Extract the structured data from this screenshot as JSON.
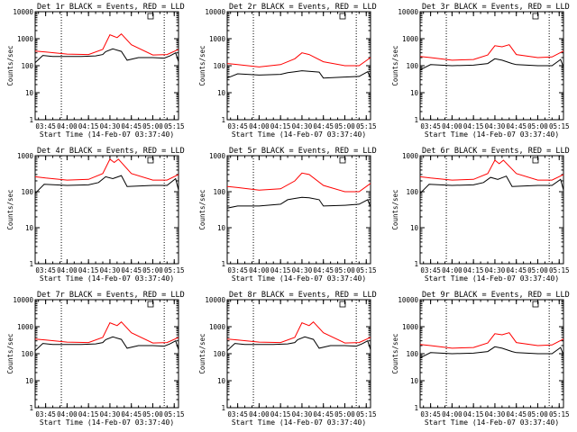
{
  "colors": {
    "events": "#000000",
    "lld": "#ff0000",
    "axis": "#000000"
  },
  "chart_data": [
    {
      "type": "line",
      "title": "Det 1r BLACK = Events, RED = LLD",
      "xlabel": "Start Time (14-Feb-07 03:37:40)",
      "ylabel": "Counts/sec",
      "log_y": true,
      "ylim": [
        1,
        10000
      ],
      "ytick_labels": [
        "1",
        "10",
        "100",
        "1000",
        "10000"
      ],
      "xlim": [
        "03:37:40",
        "05:18:00"
      ],
      "xtick_labels": [
        "03:45",
        "04:00",
        "04:15",
        "04:30",
        "04:45",
        "05:00",
        "05:15"
      ],
      "vlines": [
        "03:56",
        "05:08"
      ],
      "legend": "top-right",
      "series": [
        {
          "name": "BLACK = Events",
          "color": "#000000",
          "x": [
            "03:37:40",
            "03:43",
            "03:50",
            "04:00",
            "04:10",
            "04:20",
            "04:25",
            "04:27",
            "04:32",
            "04:38",
            "04:42",
            "04:50",
            "05:00",
            "05:08",
            "05:12",
            "05:16",
            "05:18"
          ],
          "y": [
            130,
            240,
            220,
            220,
            220,
            230,
            260,
            330,
            420,
            340,
            160,
            200,
            200,
            190,
            230,
            300,
            140
          ]
        },
        {
          "name": "RED = LLD",
          "color": "#ff0000",
          "x": [
            "03:37:40",
            "03:45",
            "04:00",
            "04:15",
            "04:25",
            "04:30",
            "04:35",
            "04:38",
            "04:45",
            "05:00",
            "05:10",
            "05:18"
          ],
          "y": [
            350,
            320,
            270,
            260,
            400,
            1400,
            1100,
            1500,
            600,
            250,
            260,
            400
          ]
        }
      ]
    },
    {
      "type": "line",
      "title": "Det 2r BLACK = Events, RED = LLD",
      "xlabel": "Start Time (14-Feb-07 03:37:40)",
      "ylabel": "Counts/sec",
      "log_y": true,
      "ylim": [
        1,
        10000
      ],
      "ytick_labels": [
        "1",
        "10",
        "100",
        "1000",
        "10000"
      ],
      "xlim": [
        "03:37:40",
        "05:18:00"
      ],
      "xtick_labels": [
        "03:45",
        "04:00",
        "04:15",
        "04:30",
        "04:45",
        "05:00",
        "05:15"
      ],
      "vlines": [
        "03:56",
        "05:08"
      ],
      "legend": "top-right",
      "series": [
        {
          "name": "BLACK = Events",
          "color": "#000000",
          "x": [
            "03:37:40",
            "03:45",
            "04:00",
            "04:15",
            "04:20",
            "04:25",
            "04:30",
            "04:35",
            "04:42",
            "04:45",
            "05:00",
            "05:10",
            "05:16",
            "05:18"
          ],
          "y": [
            35,
            50,
            45,
            48,
            55,
            60,
            65,
            62,
            58,
            35,
            38,
            40,
            60,
            35
          ]
        },
        {
          "name": "RED = LLD",
          "color": "#ff0000",
          "x": [
            "03:37:40",
            "03:45",
            "04:00",
            "04:15",
            "04:25",
            "04:30",
            "04:35",
            "04:45",
            "05:00",
            "05:10",
            "05:18"
          ],
          "y": [
            120,
            110,
            90,
            110,
            180,
            300,
            260,
            140,
            100,
            100,
            200
          ]
        }
      ]
    },
    {
      "type": "line",
      "title": "Det 3r BLACK = Events, RED = LLD",
      "xlabel": "Start Time (14-Feb-07 03:37:40)",
      "ylabel": "Counts/sec",
      "log_y": true,
      "ylim": [
        1,
        10000
      ],
      "ytick_labels": [
        "1",
        "10",
        "100",
        "1000",
        "10000"
      ],
      "xlim": [
        "03:37:40",
        "05:18:00"
      ],
      "xtick_labels": [
        "03:45",
        "04:00",
        "04:15",
        "04:30",
        "04:45",
        "05:00",
        "05:15"
      ],
      "vlines": [
        "03:56",
        "05:08"
      ],
      "legend": "top-right",
      "series": [
        {
          "name": "BLACK = Events",
          "color": "#000000",
          "x": [
            "03:37:40",
            "03:45",
            "04:00",
            "04:15",
            "04:25",
            "04:30",
            "04:35",
            "04:42",
            "04:45",
            "05:00",
            "05:10",
            "05:16",
            "05:18"
          ],
          "y": [
            70,
            110,
            100,
            105,
            120,
            180,
            160,
            120,
            110,
            100,
            100,
            170,
            90
          ]
        },
        {
          "name": "RED = LLD",
          "color": "#ff0000",
          "x": [
            "03:37:40",
            "03:45",
            "04:00",
            "04:15",
            "04:25",
            "04:30",
            "04:35",
            "04:40",
            "04:45",
            "05:00",
            "05:10",
            "05:18"
          ],
          "y": [
            220,
            200,
            160,
            170,
            250,
            550,
            500,
            600,
            260,
            200,
            210,
            350
          ]
        }
      ]
    },
    {
      "type": "line",
      "title": "Det 4r BLACK = Events, RED = LLD",
      "xlabel": "Start Time (14-Feb-07 03:37:40)",
      "ylabel": "Counts/sec",
      "log_y": true,
      "ylim": [
        1,
        1000
      ],
      "ytick_labels": [
        "1",
        "10",
        "100",
        "1000"
      ],
      "xlim": [
        "03:37:40",
        "05:18:00"
      ],
      "xtick_labels": [
        "03:45",
        "04:00",
        "04:15",
        "04:30",
        "04:45",
        "05:00",
        "05:15"
      ],
      "vlines": [
        "03:56",
        "05:08"
      ],
      "legend": "top-right",
      "series": [
        {
          "name": "BLACK = Events",
          "color": "#000000",
          "x": [
            "03:37:40",
            "03:44",
            "04:00",
            "04:15",
            "04:22",
            "04:27",
            "04:32",
            "04:38",
            "04:42",
            "05:00",
            "05:10",
            "05:16",
            "05:18"
          ],
          "y": [
            90,
            160,
            150,
            155,
            180,
            260,
            230,
            280,
            140,
            150,
            150,
            230,
            110
          ]
        },
        {
          "name": "RED = LLD",
          "color": "#ff0000",
          "x": [
            "03:37:40",
            "03:45",
            "04:00",
            "04:15",
            "04:25",
            "04:30",
            "04:33",
            "04:36",
            "04:45",
            "05:00",
            "05:10",
            "05:18"
          ],
          "y": [
            260,
            240,
            210,
            220,
            320,
            800,
            650,
            800,
            320,
            210,
            210,
            300
          ]
        }
      ]
    },
    {
      "type": "line",
      "title": "Det 5r BLACK = Events, RED = LLD",
      "xlabel": "Start Time (14-Feb-07 03:37:40)",
      "ylabel": "Counts/sec",
      "log_y": true,
      "ylim": [
        1,
        1000
      ],
      "ytick_labels": [
        "1",
        "10",
        "100",
        "1000"
      ],
      "xlim": [
        "03:37:40",
        "05:18:00"
      ],
      "xtick_labels": [
        "03:45",
        "04:00",
        "04:15",
        "04:30",
        "04:45",
        "05:00",
        "05:15"
      ],
      "vlines": [
        "03:56",
        "05:08"
      ],
      "legend": "top-right",
      "series": [
        {
          "name": "BLACK = Events",
          "color": "#000000",
          "x": [
            "03:37:40",
            "03:45",
            "04:00",
            "04:15",
            "04:20",
            "04:25",
            "04:30",
            "04:35",
            "04:42",
            "04:45",
            "05:00",
            "05:10",
            "05:16",
            "05:18"
          ],
          "y": [
            35,
            40,
            40,
            45,
            60,
            65,
            70,
            68,
            60,
            40,
            42,
            45,
            60,
            38
          ]
        },
        {
          "name": "RED = LLD",
          "color": "#ff0000",
          "x": [
            "03:37:40",
            "03:45",
            "04:00",
            "04:15",
            "04:25",
            "04:30",
            "04:35",
            "04:45",
            "05:00",
            "05:10",
            "05:18"
          ],
          "y": [
            140,
            130,
            110,
            120,
            200,
            330,
            300,
            150,
            100,
            100,
            170
          ]
        }
      ]
    },
    {
      "type": "line",
      "title": "Det 6r BLACK = Events, RED = LLD",
      "xlabel": "Start Time (14-Feb-07 03:37:40)",
      "ylabel": "Counts/sec",
      "log_y": true,
      "ylim": [
        1,
        1000
      ],
      "ytick_labels": [
        "1",
        "10",
        "100",
        "1000"
      ],
      "xlim": [
        "03:37:40",
        "05:18:00"
      ],
      "xtick_labels": [
        "03:45",
        "04:00",
        "04:15",
        "04:30",
        "04:45",
        "05:00",
        "05:15"
      ],
      "vlines": [
        "03:56",
        "05:08"
      ],
      "legend": "top-right",
      "series": [
        {
          "name": "BLACK = Events",
          "color": "#000000",
          "x": [
            "03:37:40",
            "03:44",
            "04:00",
            "04:15",
            "04:22",
            "04:27",
            "04:32",
            "04:38",
            "04:42",
            "05:00",
            "05:10",
            "05:16",
            "05:18"
          ],
          "y": [
            90,
            160,
            150,
            155,
            180,
            250,
            220,
            270,
            140,
            150,
            150,
            220,
            110
          ]
        },
        {
          "name": "RED = LLD",
          "color": "#ff0000",
          "x": [
            "03:37:40",
            "03:45",
            "04:00",
            "04:15",
            "04:25",
            "04:30",
            "04:33",
            "04:36",
            "04:45",
            "05:00",
            "05:10",
            "05:18"
          ],
          "y": [
            260,
            240,
            210,
            220,
            320,
            750,
            600,
            750,
            320,
            210,
            210,
            300
          ]
        }
      ]
    },
    {
      "type": "line",
      "title": "Det 7r BLACK = Events, RED = LLD",
      "xlabel": "Start Time (14-Feb-07 03:37:40)",
      "ylabel": "Counts/sec",
      "log_y": true,
      "ylim": [
        1,
        10000
      ],
      "ytick_labels": [
        "1",
        "10",
        "100",
        "1000",
        "10000"
      ],
      "xlim": [
        "03:37:40",
        "05:18:00"
      ],
      "xtick_labels": [
        "03:45",
        "04:00",
        "04:15",
        "04:30",
        "04:45",
        "05:00",
        "05:15"
      ],
      "vlines": [
        "03:56",
        "05:08"
      ],
      "legend": "top-right",
      "series": [
        {
          "name": "BLACK = Events",
          "color": "#000000",
          "x": [
            "03:37:40",
            "03:43",
            "03:50",
            "04:00",
            "04:10",
            "04:20",
            "04:25",
            "04:27",
            "04:32",
            "04:38",
            "04:42",
            "04:50",
            "05:00",
            "05:08",
            "05:12",
            "05:16",
            "05:18"
          ],
          "y": [
            130,
            240,
            220,
            220,
            220,
            230,
            260,
            330,
            420,
            340,
            160,
            200,
            200,
            190,
            230,
            300,
            140
          ]
        },
        {
          "name": "RED = LLD",
          "color": "#ff0000",
          "x": [
            "03:37:40",
            "03:45",
            "04:00",
            "04:15",
            "04:25",
            "04:30",
            "04:35",
            "04:38",
            "04:45",
            "05:00",
            "05:10",
            "05:18"
          ],
          "y": [
            350,
            320,
            270,
            260,
            400,
            1400,
            1100,
            1500,
            600,
            250,
            260,
            400
          ]
        }
      ]
    },
    {
      "type": "line",
      "title": "Det 8r BLACK = Events, RED = LLD",
      "xlabel": "Start Time (14-Feb-07 03:37:40)",
      "ylabel": "Counts/sec",
      "log_y": true,
      "ylim": [
        1,
        10000
      ],
      "ytick_labels": [
        "1",
        "10",
        "100",
        "1000",
        "10000"
      ],
      "xlim": [
        "03:37:40",
        "05:18:00"
      ],
      "xtick_labels": [
        "03:45",
        "04:00",
        "04:15",
        "04:30",
        "04:45",
        "05:00",
        "05:15"
      ],
      "vlines": [
        "03:56",
        "05:08"
      ],
      "legend": "top-right",
      "series": [
        {
          "name": "BLACK = Events",
          "color": "#000000",
          "x": [
            "03:37:40",
            "03:43",
            "03:50",
            "04:00",
            "04:10",
            "04:20",
            "04:25",
            "04:27",
            "04:32",
            "04:38",
            "04:42",
            "04:50",
            "05:00",
            "05:08",
            "05:12",
            "05:16",
            "05:18"
          ],
          "y": [
            130,
            240,
            220,
            220,
            220,
            230,
            260,
            330,
            420,
            340,
            160,
            200,
            200,
            190,
            230,
            300,
            140
          ]
        },
        {
          "name": "RED = LLD",
          "color": "#ff0000",
          "x": [
            "03:37:40",
            "03:45",
            "04:00",
            "04:15",
            "04:25",
            "04:30",
            "04:35",
            "04:38",
            "04:45",
            "05:00",
            "05:10",
            "05:18"
          ],
          "y": [
            350,
            320,
            270,
            260,
            400,
            1400,
            1100,
            1500,
            600,
            250,
            260,
            400
          ]
        }
      ]
    },
    {
      "type": "line",
      "title": "Det 9r BLACK = Events, RED = LLD",
      "xlabel": "Start Time (14-Feb-07 03:37:40)",
      "ylabel": "Counts/sec",
      "log_y": true,
      "ylim": [
        1,
        10000
      ],
      "ytick_labels": [
        "1",
        "10",
        "100",
        "1000",
        "10000"
      ],
      "xlim": [
        "03:37:40",
        "05:18:00"
      ],
      "xtick_labels": [
        "03:45",
        "04:00",
        "04:15",
        "04:30",
        "04:45",
        "05:00",
        "05:15"
      ],
      "vlines": [
        "03:56",
        "05:08"
      ],
      "legend": "top-right",
      "series": [
        {
          "name": "BLACK = Events",
          "color": "#000000",
          "x": [
            "03:37:40",
            "03:45",
            "04:00",
            "04:15",
            "04:25",
            "04:30",
            "04:35",
            "04:42",
            "04:45",
            "05:00",
            "05:10",
            "05:16",
            "05:18"
          ],
          "y": [
            70,
            110,
            100,
            105,
            120,
            180,
            160,
            120,
            110,
            100,
            100,
            170,
            90
          ]
        },
        {
          "name": "RED = LLD",
          "color": "#ff0000",
          "x": [
            "03:37:40",
            "03:45",
            "04:00",
            "04:15",
            "04:25",
            "04:30",
            "04:35",
            "04:40",
            "04:45",
            "05:00",
            "05:10",
            "05:18"
          ],
          "y": [
            220,
            200,
            160,
            170,
            250,
            550,
            500,
            600,
            260,
            200,
            210,
            350
          ]
        }
      ]
    }
  ]
}
